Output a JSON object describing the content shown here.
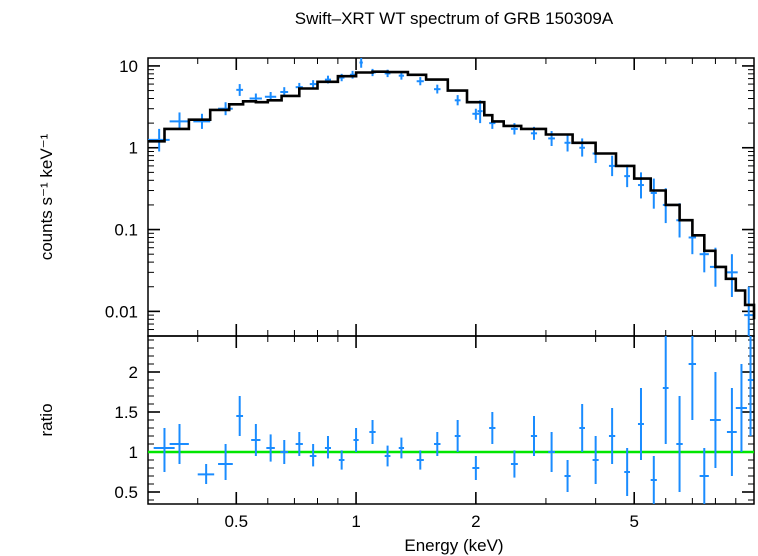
{
  "chart_data": [
    {
      "type": "scatter",
      "panel": "spectrum",
      "title": "Swift–XRT WT spectrum of GRB 150309A",
      "ylabel": "counts s⁻¹ keV⁻¹",
      "xscale": "log",
      "yscale": "log",
      "xlim": [
        0.3,
        10
      ],
      "ylim": [
        0.005,
        12.5
      ],
      "y_ticks": [
        "10",
        "1",
        "0.1",
        "0.01"
      ],
      "y_tick_values": [
        10,
        1,
        0.1,
        0.01
      ],
      "colors": {
        "data": "#1a8cff",
        "model": "#000000"
      },
      "series": [
        {
          "style": "data",
          "points": [
            {
              "x": 0.32,
              "y": 1.25,
              "xerr": 0.02,
              "ylo": 0.9,
              "yhi": 1.7
            },
            {
              "x": 0.36,
              "y": 2.1,
              "xerr": 0.02,
              "ylo": 1.7,
              "yhi": 2.7
            },
            {
              "x": 0.41,
              "y": 2.1,
              "xerr": 0.02,
              "ylo": 1.7,
              "yhi": 2.6
            },
            {
              "x": 0.47,
              "y": 3.0,
              "xerr": 0.02,
              "ylo": 2.5,
              "yhi": 3.6
            },
            {
              "x": 0.51,
              "y": 5.1,
              "xerr": 0.01,
              "ylo": 4.3,
              "yhi": 6.0
            },
            {
              "x": 0.56,
              "y": 4.0,
              "xerr": 0.02,
              "ylo": 3.5,
              "yhi": 4.6
            },
            {
              "x": 0.61,
              "y": 4.2,
              "xerr": 0.02,
              "ylo": 3.7,
              "yhi": 4.8
            },
            {
              "x": 0.66,
              "y": 4.8,
              "xerr": 0.015,
              "ylo": 4.2,
              "yhi": 5.5
            },
            {
              "x": 0.72,
              "y": 5.5,
              "xerr": 0.015,
              "ylo": 4.9,
              "yhi": 6.2
            },
            {
              "x": 0.78,
              "y": 6.0,
              "xerr": 0.015,
              "ylo": 5.4,
              "yhi": 6.7
            },
            {
              "x": 0.85,
              "y": 6.8,
              "xerr": 0.015,
              "ylo": 6.1,
              "yhi": 7.6
            },
            {
              "x": 0.92,
              "y": 7.2,
              "xerr": 0.015,
              "ylo": 6.5,
              "yhi": 8.0
            },
            {
              "x": 0.98,
              "y": 7.8,
              "xerr": 0.015,
              "ylo": 7.0,
              "yhi": 8.7
            },
            {
              "x": 1.03,
              "y": 11.0,
              "xerr": 0.01,
              "ylo": 9.5,
              "yhi": 12.5
            },
            {
              "x": 1.1,
              "y": 8.3,
              "xerr": 0.02,
              "ylo": 7.5,
              "yhi": 9.2
            },
            {
              "x": 1.2,
              "y": 8.1,
              "xerr": 0.02,
              "ylo": 7.3,
              "yhi": 9.0
            },
            {
              "x": 1.3,
              "y": 7.6,
              "xerr": 0.02,
              "ylo": 6.8,
              "yhi": 8.5
            },
            {
              "x": 1.45,
              "y": 6.5,
              "xerr": 0.03,
              "ylo": 5.8,
              "yhi": 7.3
            },
            {
              "x": 1.6,
              "y": 5.2,
              "xerr": 0.03,
              "ylo": 4.6,
              "yhi": 5.9
            },
            {
              "x": 1.8,
              "y": 3.8,
              "xerr": 0.03,
              "ylo": 3.3,
              "yhi": 4.4
            },
            {
              "x": 2.0,
              "y": 2.6,
              "xerr": 0.04,
              "ylo": 2.2,
              "yhi": 3.0
            },
            {
              "x": 2.05,
              "y": 2.8,
              "xerr": 0.03,
              "ylo": 2.0,
              "yhi": 3.8
            },
            {
              "x": 2.2,
              "y": 2.0,
              "xerr": 0.04,
              "ylo": 1.7,
              "yhi": 2.4
            },
            {
              "x": 2.5,
              "y": 1.7,
              "xerr": 0.05,
              "ylo": 1.45,
              "yhi": 2.0
            },
            {
              "x": 2.8,
              "y": 1.5,
              "xerr": 0.05,
              "ylo": 1.25,
              "yhi": 1.8
            },
            {
              "x": 3.1,
              "y": 1.3,
              "xerr": 0.06,
              "ylo": 1.05,
              "yhi": 1.6
            },
            {
              "x": 3.4,
              "y": 1.15,
              "xerr": 0.06,
              "ylo": 0.9,
              "yhi": 1.45
            },
            {
              "x": 3.7,
              "y": 1.0,
              "xerr": 0.06,
              "ylo": 0.78,
              "yhi": 1.3
            },
            {
              "x": 4.0,
              "y": 0.85,
              "xerr": 0.07,
              "ylo": 0.65,
              "yhi": 1.1
            },
            {
              "x": 4.4,
              "y": 0.6,
              "xerr": 0.08,
              "ylo": 0.45,
              "yhi": 0.8
            },
            {
              "x": 4.8,
              "y": 0.45,
              "xerr": 0.08,
              "ylo": 0.33,
              "yhi": 0.62
            },
            {
              "x": 5.2,
              "y": 0.35,
              "xerr": 0.09,
              "ylo": 0.24,
              "yhi": 0.5
            },
            {
              "x": 5.6,
              "y": 0.28,
              "xerr": 0.1,
              "ylo": 0.18,
              "yhi": 0.42
            },
            {
              "x": 6.0,
              "y": 0.2,
              "xerr": 0.1,
              "ylo": 0.12,
              "yhi": 0.32
            },
            {
              "x": 6.5,
              "y": 0.13,
              "xerr": 0.12,
              "ylo": 0.08,
              "yhi": 0.21
            },
            {
              "x": 7.0,
              "y": 0.08,
              "xerr": 0.15,
              "ylo": 0.05,
              "yhi": 0.13
            },
            {
              "x": 7.5,
              "y": 0.05,
              "xerr": 0.2,
              "ylo": 0.03,
              "yhi": 0.08
            },
            {
              "x": 8.0,
              "y": 0.035,
              "xerr": 0.25,
              "ylo": 0.02,
              "yhi": 0.06
            },
            {
              "x": 8.8,
              "y": 0.03,
              "xerr": 0.3,
              "ylo": 0.015,
              "yhi": 0.05
            },
            {
              "x": 9.7,
              "y": 0.009,
              "xerr": 0.25,
              "ylo": 0.005,
              "yhi": 0.02
            }
          ]
        },
        {
          "style": "model",
          "x": [
            0.3,
            0.33,
            0.38,
            0.43,
            0.48,
            0.52,
            0.56,
            0.6,
            0.65,
            0.72,
            0.8,
            0.9,
            1.0,
            1.1,
            1.2,
            1.35,
            1.5,
            1.7,
            1.9,
            2.1,
            2.2,
            2.35,
            2.6,
            3.0,
            3.5,
            4.0,
            4.5,
            5.0,
            5.5,
            6.0,
            6.5,
            7.0,
            7.5,
            8.0,
            8.5,
            9.0,
            9.5,
            10.0
          ],
          "y": [
            1.2,
            1.7,
            2.2,
            2.9,
            3.4,
            3.7,
            3.6,
            3.8,
            4.3,
            5.3,
            6.4,
            7.5,
            8.3,
            8.5,
            8.4,
            7.8,
            6.8,
            5.0,
            3.6,
            2.5,
            2.1,
            1.85,
            1.7,
            1.45,
            1.15,
            0.85,
            0.6,
            0.42,
            0.3,
            0.2,
            0.13,
            0.085,
            0.055,
            0.035,
            0.025,
            0.018,
            0.012,
            0.008
          ]
        }
      ]
    },
    {
      "type": "scatter",
      "panel": "ratio",
      "xlabel": "Energy (keV)",
      "ylabel": "ratio",
      "xscale": "log",
      "xlim": [
        0.3,
        10
      ],
      "ylim": [
        0.35,
        2.45
      ],
      "x_ticks": [
        "0.5",
        "1",
        "2",
        "5"
      ],
      "x_tick_values": [
        0.5,
        1,
        2,
        5
      ],
      "y_ticks": [
        "0.5",
        "1",
        "1.5",
        "2"
      ],
      "y_tick_values": [
        0.5,
        1,
        1.5,
        2
      ],
      "reference_line": {
        "y": 1,
        "color": "#00e600"
      },
      "colors": {
        "data": "#1a8cff"
      },
      "points": [
        {
          "x": 0.33,
          "y": 1.05,
          "xerr": 0.02,
          "ylo": 0.75,
          "yhi": 1.3
        },
        {
          "x": 0.36,
          "y": 1.1,
          "xerr": 0.02,
          "ylo": 0.85,
          "yhi": 1.35
        },
        {
          "x": 0.42,
          "y": 0.72,
          "xerr": 0.02,
          "ylo": 0.6,
          "yhi": 0.85
        },
        {
          "x": 0.47,
          "y": 0.85,
          "xerr": 0.02,
          "ylo": 0.65,
          "yhi": 1.1
        },
        {
          "x": 0.51,
          "y": 1.45,
          "xerr": 0.01,
          "ylo": 1.2,
          "yhi": 1.7
        },
        {
          "x": 0.56,
          "y": 1.15,
          "xerr": 0.015,
          "ylo": 0.95,
          "yhi": 1.35
        },
        {
          "x": 0.61,
          "y": 1.05,
          "xerr": 0.015,
          "ylo": 0.88,
          "yhi": 1.22
        },
        {
          "x": 0.66,
          "y": 1.0,
          "xerr": 0.015,
          "ylo": 0.85,
          "yhi": 1.15
        },
        {
          "x": 0.72,
          "y": 1.1,
          "xerr": 0.015,
          "ylo": 0.95,
          "yhi": 1.25
        },
        {
          "x": 0.78,
          "y": 0.95,
          "xerr": 0.015,
          "ylo": 0.82,
          "yhi": 1.1
        },
        {
          "x": 0.85,
          "y": 1.05,
          "xerr": 0.015,
          "ylo": 0.92,
          "yhi": 1.2
        },
        {
          "x": 0.92,
          "y": 0.9,
          "xerr": 0.015,
          "ylo": 0.78,
          "yhi": 1.02
        },
        {
          "x": 1.0,
          "y": 1.15,
          "xerr": 0.015,
          "ylo": 1.0,
          "yhi": 1.3
        },
        {
          "x": 1.1,
          "y": 1.25,
          "xerr": 0.02,
          "ylo": 1.1,
          "yhi": 1.4
        },
        {
          "x": 1.2,
          "y": 0.95,
          "xerr": 0.02,
          "ylo": 0.82,
          "yhi": 1.08
        },
        {
          "x": 1.3,
          "y": 1.05,
          "xerr": 0.02,
          "ylo": 0.92,
          "yhi": 1.18
        },
        {
          "x": 1.45,
          "y": 0.9,
          "xerr": 0.03,
          "ylo": 0.78,
          "yhi": 1.02
        },
        {
          "x": 1.6,
          "y": 1.1,
          "xerr": 0.03,
          "ylo": 0.95,
          "yhi": 1.25
        },
        {
          "x": 1.8,
          "y": 1.2,
          "xerr": 0.03,
          "ylo": 1.0,
          "yhi": 1.4
        },
        {
          "x": 2.0,
          "y": 0.8,
          "xerr": 0.04,
          "ylo": 0.65,
          "yhi": 0.95
        },
        {
          "x": 2.2,
          "y": 1.3,
          "xerr": 0.04,
          "ylo": 1.1,
          "yhi": 1.5
        },
        {
          "x": 2.5,
          "y": 0.85,
          "xerr": 0.05,
          "ylo": 0.68,
          "yhi": 1.02
        },
        {
          "x": 2.8,
          "y": 1.2,
          "xerr": 0.05,
          "ylo": 0.95,
          "yhi": 1.45
        },
        {
          "x": 3.1,
          "y": 1.0,
          "xerr": 0.06,
          "ylo": 0.75,
          "yhi": 1.25
        },
        {
          "x": 3.4,
          "y": 0.7,
          "xerr": 0.06,
          "ylo": 0.5,
          "yhi": 0.9
        },
        {
          "x": 3.7,
          "y": 1.3,
          "xerr": 0.06,
          "ylo": 1.0,
          "yhi": 1.6
        },
        {
          "x": 4.0,
          "y": 0.9,
          "xerr": 0.07,
          "ylo": 0.6,
          "yhi": 1.2
        },
        {
          "x": 4.4,
          "y": 1.2,
          "xerr": 0.08,
          "ylo": 0.85,
          "yhi": 1.55
        },
        {
          "x": 4.8,
          "y": 0.75,
          "xerr": 0.08,
          "ylo": 0.45,
          "yhi": 1.05
        },
        {
          "x": 5.2,
          "y": 1.35,
          "xerr": 0.09,
          "ylo": 0.9,
          "yhi": 1.8
        },
        {
          "x": 5.6,
          "y": 0.65,
          "xerr": 0.1,
          "ylo": 0.35,
          "yhi": 0.95
        },
        {
          "x": 6.0,
          "y": 1.8,
          "xerr": 0.1,
          "ylo": 1.1,
          "yhi": 2.45
        },
        {
          "x": 6.5,
          "y": 1.1,
          "xerr": 0.12,
          "ylo": 0.5,
          "yhi": 1.7
        },
        {
          "x": 7.0,
          "y": 2.1,
          "xerr": 0.15,
          "ylo": 1.4,
          "yhi": 2.45
        },
        {
          "x": 7.5,
          "y": 0.7,
          "xerr": 0.2,
          "ylo": 0.35,
          "yhi": 1.05
        },
        {
          "x": 8.0,
          "y": 1.4,
          "xerr": 0.25,
          "ylo": 0.8,
          "yhi": 2.0
        },
        {
          "x": 8.8,
          "y": 1.25,
          "xerr": 0.25,
          "ylo": 0.7,
          "yhi": 1.8
        },
        {
          "x": 9.3,
          "y": 1.55,
          "xerr": 0.3,
          "ylo": 1.0,
          "yhi": 2.1
        },
        {
          "x": 9.8,
          "y": 1.9,
          "xerr": 0.15,
          "ylo": 1.2,
          "yhi": 2.45
        }
      ]
    }
  ]
}
